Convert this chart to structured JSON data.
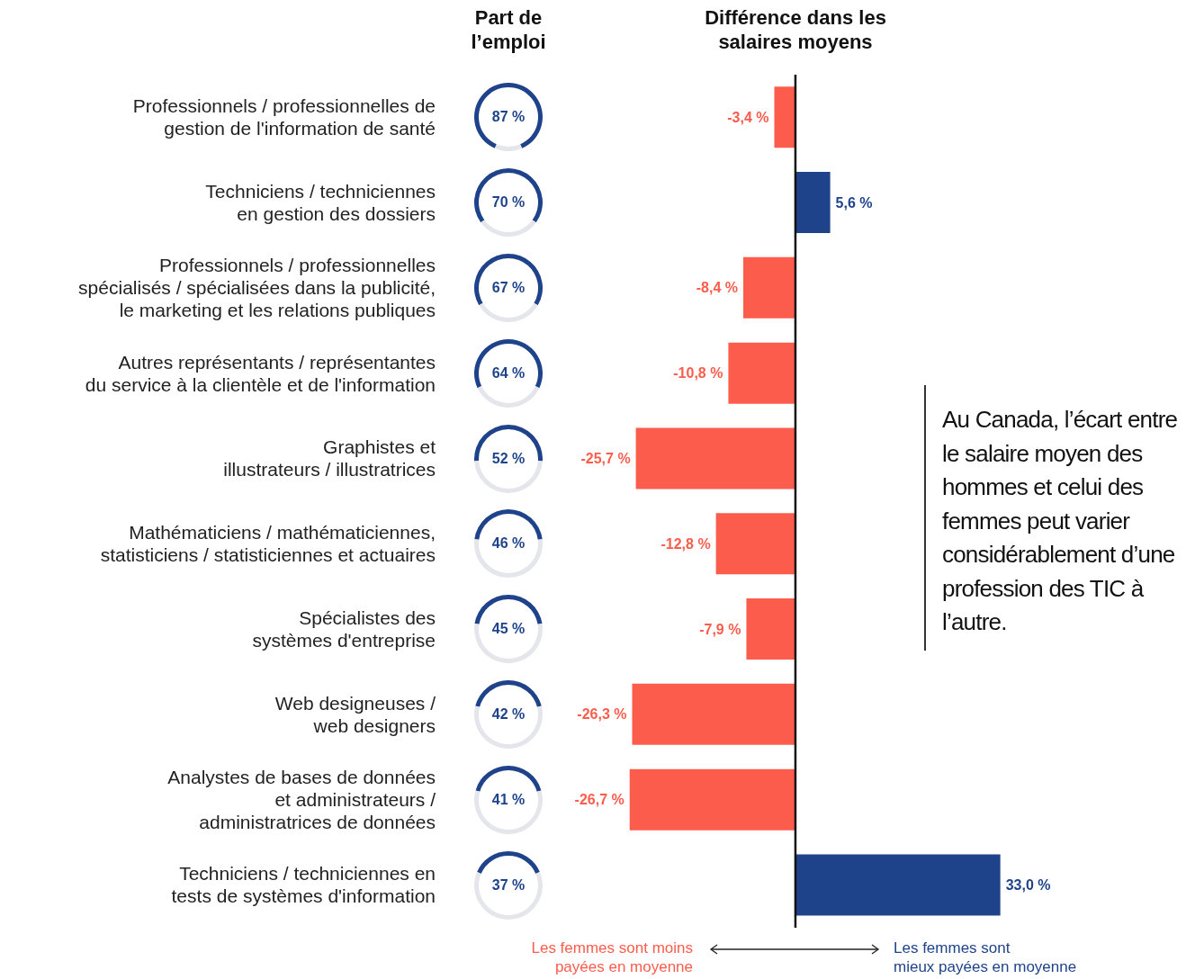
{
  "chart_data": [
    {
      "type": "other",
      "title": "Part de\nl’emploi",
      "values": [
        87,
        70,
        67,
        64,
        52,
        46,
        45,
        42,
        41,
        37
      ],
      "value_labels": [
        "87 %",
        "70 %",
        "67 %",
        "64 %",
        "52 %",
        "46 %",
        "45 %",
        "42 %",
        "41 %",
        "37 %"
      ],
      "color": "#1f438a"
    },
    {
      "type": "bar",
      "orientation": "horizontal",
      "title": "Différence dans les\nsalaires moyens",
      "categories": [
        "Professionnels / professionnelles de\ngestion de l'information de santé",
        "Techniciens / techniciennes\nen gestion des dossiers",
        "Professionnels / professionnelles\nspécialisés / spécialisées dans la publicité,\nle marketing et les relations publiques",
        "Autres représentants / représentantes\ndu service à la clientèle et de l'information",
        "Graphistes et\nillustrateurs / illustratrices",
        "Mathématiciens / mathématiciennes,\nstatisticiens / statisticiennes et actuaires",
        "Spécialistes des\nsystèmes d'entreprise",
        "Web designeuses /\nweb designers",
        "Analystes de bases de données\net administrateurs /\nadministratrices de données",
        "Techniciens / techniciennes en\ntests de systèmes d'information"
      ],
      "values": [
        -3.4,
        5.6,
        -8.4,
        -10.8,
        -25.7,
        -12.8,
        -7.9,
        -26.3,
        -26.7,
        33.0
      ],
      "value_labels": [
        "-3,4 %",
        "5,6 %",
        "-8,4 %",
        "-10,8 %",
        "-25,7 %",
        "-12,8 %",
        "-7,9 %",
        "-26,3 %",
        "-26,7 %",
        "33,0 %"
      ],
      "colors": [
        "#fc5c4c",
        "#1f438a",
        "#fc5c4c",
        "#fc5c4c",
        "#fc5c4c",
        "#fc5c4c",
        "#fc5c4c",
        "#fc5c4c",
        "#fc5c4c",
        "#1f438a"
      ],
      "annotations": [
        "Au Canada, l’écart entre le salaire moyen des hommes et celui des femmes peut varier considérablement d’une profession des TIC à l’autre.",
        "Les femmes sont moins\npayées en moyenne",
        "Les femmes sont\nmieux payées en moyenne"
      ]
    }
  ]
}
